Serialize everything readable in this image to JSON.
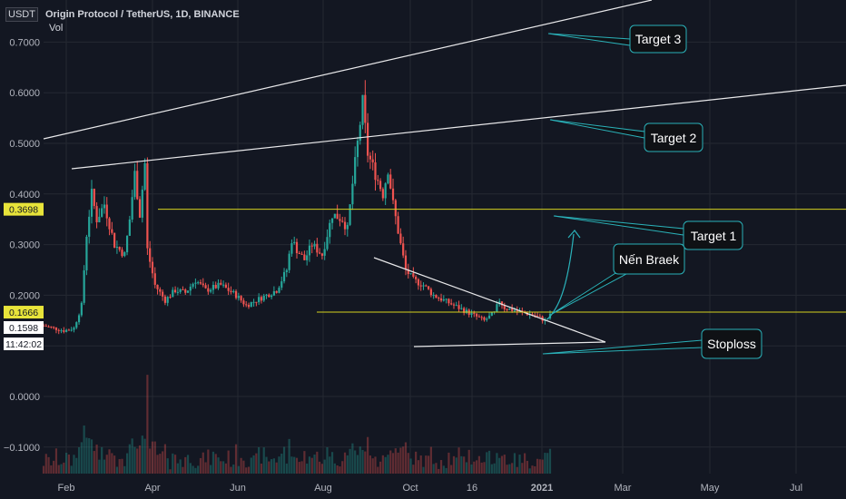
{
  "header": {
    "currency": "USDT",
    "title": "Origin Protocol / TetherUS, 1D, BINANCE",
    "volume_label": "Vol"
  },
  "chart_data": {
    "type": "candlestick",
    "x_ticks": [
      "Feb",
      "Apr",
      "Jun",
      "Aug",
      "Oct",
      "16",
      "2021",
      "Mar",
      "May",
      "Jul"
    ],
    "y_ticks": [
      "0.7000",
      "0.6000",
      "0.5000",
      "0.4000",
      "0.3000",
      "0.2000",
      "0.1000",
      "0.0000",
      "−0.1000"
    ],
    "ylim": [
      -0.135,
      0.78
    ],
    "price_badges": [
      {
        "label": "0.3698",
        "value": 0.3698,
        "color": "#e8e43a"
      },
      {
        "label": "0.1666",
        "value": 0.1666,
        "color": "#e8e43a"
      },
      {
        "label": "0.1598",
        "value": 0.1598,
        "color": "#ffffff"
      },
      {
        "label": "11:42:02",
        "value": 0.135,
        "color": "#ffffff"
      }
    ],
    "horizontal_lines": [
      {
        "y": 0.3698,
        "color": "#d4d21f"
      },
      {
        "y": 0.1666,
        "color": "#d4d21f"
      }
    ],
    "annotations": [
      "Target 3",
      "Target 2",
      "Target 1",
      "Nến Braek",
      "Stoploss"
    ],
    "price_path": [
      [
        0,
        0.14
      ],
      [
        4,
        0.135
      ],
      [
        8,
        0.13
      ],
      [
        12,
        0.135
      ],
      [
        15,
        0.18
      ],
      [
        17,
        0.32
      ],
      [
        19,
        0.4
      ],
      [
        21,
        0.35
      ],
      [
        24,
        0.38
      ],
      [
        28,
        0.3
      ],
      [
        32,
        0.28
      ],
      [
        34,
        0.35
      ],
      [
        36,
        0.44
      ],
      [
        38,
        0.36
      ],
      [
        40,
        0.46
      ],
      [
        41,
        0.29
      ],
      [
        44,
        0.22
      ],
      [
        48,
        0.19
      ],
      [
        52,
        0.21
      ],
      [
        56,
        0.205
      ],
      [
        60,
        0.23
      ],
      [
        64,
        0.21
      ],
      [
        70,
        0.22
      ],
      [
        76,
        0.2
      ],
      [
        80,
        0.18
      ],
      [
        84,
        0.19
      ],
      [
        88,
        0.2
      ],
      [
        92,
        0.21
      ],
      [
        96,
        0.25
      ],
      [
        98,
        0.31
      ],
      [
        100,
        0.29
      ],
      [
        103,
        0.27
      ],
      [
        106,
        0.3
      ],
      [
        110,
        0.28
      ],
      [
        114,
        0.36
      ],
      [
        118,
        0.35
      ],
      [
        120,
        0.33
      ],
      [
        122,
        0.42
      ],
      [
        124,
        0.5
      ],
      [
        126,
        0.58
      ],
      [
        128,
        0.48
      ],
      [
        131,
        0.44
      ],
      [
        134,
        0.4
      ],
      [
        136,
        0.45
      ],
      [
        138,
        0.38
      ],
      [
        141,
        0.3
      ],
      [
        143,
        0.25
      ],
      [
        146,
        0.23
      ],
      [
        150,
        0.22
      ],
      [
        154,
        0.2
      ],
      [
        158,
        0.19
      ],
      [
        162,
        0.18
      ],
      [
        166,
        0.17
      ],
      [
        170,
        0.16
      ],
      [
        174,
        0.15
      ],
      [
        178,
        0.165
      ],
      [
        180,
        0.19
      ],
      [
        182,
        0.175
      ],
      [
        186,
        0.17
      ],
      [
        190,
        0.165
      ],
      [
        194,
        0.16
      ],
      [
        198,
        0.15
      ],
      [
        200,
        0.1598
      ]
    ],
    "x_range": [
      0,
      200
    ]
  },
  "colors": {
    "background": "#131722",
    "grid": "#242832",
    "up": "#26a69a",
    "down": "#ef5350",
    "axis_text": "#b2b5be"
  }
}
